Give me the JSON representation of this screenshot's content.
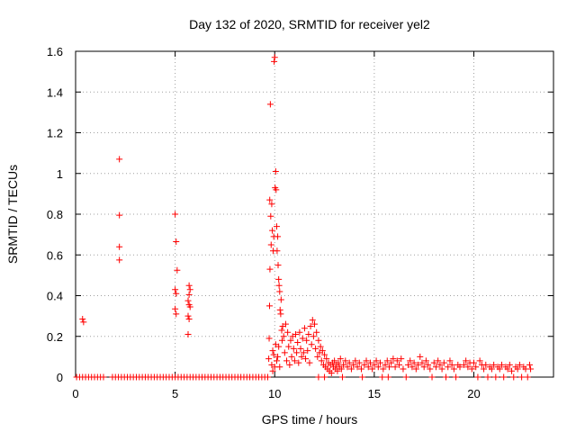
{
  "chart_data": {
    "type": "scatter",
    "title": "Day 132 of 2020, SRMTID for receiver yel2",
    "xlabel": "GPS time / hours",
    "ylabel": "SRMTID / TECUs",
    "xlim": [
      0,
      24
    ],
    "ylim": [
      0,
      1.6
    ],
    "x_ticks": [
      0,
      5,
      10,
      15,
      20
    ],
    "x_tick_labels": [
      "0",
      "5",
      "10",
      "15",
      "20"
    ],
    "y_ticks": [
      0,
      0.2,
      0.4,
      0.6,
      0.8,
      1.0,
      1.2,
      1.4,
      1.6
    ],
    "y_tick_labels": [
      "0",
      "0.2",
      "0.4",
      "0.6",
      "0.8",
      "1",
      "1.2",
      "1.4",
      "1.6"
    ],
    "grid": true,
    "marker": "+",
    "color": "#ff0000",
    "series": [
      {
        "name": "SRMTID",
        "points": [
          [
            0.05,
            0
          ],
          [
            0.2,
            0
          ],
          [
            0.35,
            0
          ],
          [
            0.5,
            0
          ],
          [
            0.65,
            0
          ],
          [
            0.8,
            0
          ],
          [
            0.95,
            0
          ],
          [
            1.1,
            0
          ],
          [
            1.25,
            0
          ],
          [
            1.4,
            0
          ],
          [
            1.85,
            0
          ],
          [
            2.0,
            0
          ],
          [
            2.15,
            0
          ],
          [
            2.3,
            0
          ],
          [
            2.45,
            0
          ],
          [
            2.6,
            0
          ],
          [
            2.75,
            0
          ],
          [
            2.9,
            0
          ],
          [
            3.05,
            0
          ],
          [
            3.2,
            0
          ],
          [
            3.35,
            0
          ],
          [
            3.5,
            0
          ],
          [
            3.65,
            0
          ],
          [
            3.8,
            0
          ],
          [
            3.95,
            0
          ],
          [
            4.1,
            0
          ],
          [
            4.25,
            0
          ],
          [
            4.4,
            0
          ],
          [
            4.55,
            0
          ],
          [
            4.7,
            0
          ],
          [
            4.85,
            0
          ],
          [
            5.0,
            0
          ],
          [
            5.15,
            0
          ],
          [
            5.3,
            0
          ],
          [
            5.45,
            0
          ],
          [
            5.6,
            0
          ],
          [
            5.75,
            0
          ],
          [
            5.9,
            0
          ],
          [
            6.05,
            0
          ],
          [
            6.2,
            0
          ],
          [
            6.35,
            0
          ],
          [
            6.5,
            0
          ],
          [
            6.65,
            0
          ],
          [
            6.8,
            0
          ],
          [
            6.95,
            0
          ],
          [
            7.1,
            0
          ],
          [
            7.25,
            0
          ],
          [
            7.4,
            0
          ],
          [
            7.55,
            0
          ],
          [
            7.7,
            0
          ],
          [
            7.85,
            0
          ],
          [
            8.0,
            0
          ],
          [
            8.15,
            0
          ],
          [
            8.3,
            0
          ],
          [
            8.45,
            0
          ],
          [
            8.6,
            0
          ],
          [
            8.75,
            0
          ],
          [
            8.9,
            0
          ],
          [
            9.05,
            0
          ],
          [
            9.2,
            0
          ],
          [
            9.35,
            0
          ],
          [
            9.5,
            0
          ],
          [
            9.65,
            0
          ],
          [
            12.2,
            0
          ],
          [
            12.5,
            0
          ],
          [
            13.4,
            0
          ],
          [
            14.4,
            0
          ],
          [
            15.4,
            0
          ],
          [
            15.7,
            0
          ],
          [
            16.6,
            0
          ],
          [
            17.9,
            0
          ],
          [
            18.6,
            0
          ],
          [
            19.1,
            0
          ],
          [
            20.2,
            0
          ],
          [
            20.7,
            0
          ],
          [
            21.1,
            0
          ],
          [
            21.5,
            0
          ],
          [
            22.0,
            0
          ],
          [
            22.4,
            0
          ],
          [
            22.7,
            0
          ],
          [
            0.35,
            0.285
          ],
          [
            0.4,
            0.27
          ],
          [
            2.2,
            1.07
          ],
          [
            2.2,
            0.795
          ],
          [
            2.2,
            0.64
          ],
          [
            2.2,
            0.575
          ],
          [
            5.0,
            0.8
          ],
          [
            5.05,
            0.665
          ],
          [
            5.1,
            0.525
          ],
          [
            5.0,
            0.43
          ],
          [
            5.05,
            0.41
          ],
          [
            5.0,
            0.335
          ],
          [
            5.05,
            0.31
          ],
          [
            5.7,
            0.45
          ],
          [
            5.75,
            0.43
          ],
          [
            5.7,
            0.405
          ],
          [
            5.65,
            0.375
          ],
          [
            5.7,
            0.355
          ],
          [
            5.75,
            0.345
          ],
          [
            5.65,
            0.3
          ],
          [
            5.7,
            0.285
          ],
          [
            5.65,
            0.21
          ],
          [
            9.7,
            0.09
          ],
          [
            9.72,
            0.19
          ],
          [
            9.74,
            0.35
          ],
          [
            9.75,
            0.87
          ],
          [
            9.76,
            0.53
          ],
          [
            9.78,
            1.34
          ],
          [
            9.8,
            0.79
          ],
          [
            9.82,
            0.65
          ],
          [
            9.85,
            0.85
          ],
          [
            9.88,
            0.72
          ],
          [
            9.9,
            0.13
          ],
          [
            9.92,
            0.62
          ],
          [
            9.95,
            0.69
          ],
          [
            9.97,
            1.55
          ],
          [
            10.0,
            1.57
          ],
          [
            10.02,
            0.93
          ],
          [
            10.05,
            1.01
          ],
          [
            10.07,
            0.92
          ],
          [
            10.1,
            0.74
          ],
          [
            10.12,
            0.62
          ],
          [
            10.15,
            0.69
          ],
          [
            10.17,
            0.55
          ],
          [
            10.2,
            0.48
          ],
          [
            10.22,
            0.45
          ],
          [
            10.25,
            0.42
          ],
          [
            10.27,
            0.33
          ],
          [
            10.3,
            0.31
          ],
          [
            10.32,
            0.38
          ],
          [
            10.35,
            0.23
          ],
          [
            10.37,
            0.18
          ],
          [
            9.85,
            0.06
          ],
          [
            9.9,
            0.03
          ],
          [
            9.95,
            0.11
          ],
          [
            10.0,
            0.05
          ],
          [
            10.05,
            0.16
          ],
          [
            10.1,
            0.08
          ],
          [
            10.15,
            0.1
          ],
          [
            10.2,
            0.15
          ],
          [
            10.25,
            0.05
          ],
          [
            10.4,
            0.25
          ],
          [
            10.45,
            0.2
          ],
          [
            10.5,
            0.12
          ],
          [
            10.55,
            0.26
          ],
          [
            10.6,
            0.08
          ],
          [
            10.65,
            0.22
          ],
          [
            10.7,
            0.15
          ],
          [
            10.75,
            0.06
          ],
          [
            10.8,
            0.18
          ],
          [
            10.85,
            0.1
          ],
          [
            10.9,
            0.2
          ],
          [
            10.95,
            0.14
          ],
          [
            11.0,
            0.08
          ],
          [
            11.05,
            0.21
          ],
          [
            11.1,
            0.12
          ],
          [
            11.15,
            0.17
          ],
          [
            11.2,
            0.07
          ],
          [
            11.25,
            0.22
          ],
          [
            11.3,
            0.14
          ],
          [
            11.35,
            0.1
          ],
          [
            11.4,
            0.19
          ],
          [
            11.45,
            0.12
          ],
          [
            11.5,
            0.24
          ],
          [
            11.55,
            0.09
          ],
          [
            11.6,
            0.18
          ],
          [
            11.65,
            0.13
          ],
          [
            11.7,
            0.21
          ],
          [
            11.75,
            0.07
          ],
          [
            11.8,
            0.25
          ],
          [
            11.85,
            0.16
          ],
          [
            11.9,
            0.28
          ],
          [
            11.95,
            0.2
          ],
          [
            12.0,
            0.26
          ],
          [
            12.05,
            0.14
          ],
          [
            12.1,
            0.22
          ],
          [
            12.15,
            0.1
          ],
          [
            12.2,
            0.18
          ],
          [
            12.25,
            0.12
          ],
          [
            12.3,
            0.15
          ],
          [
            12.35,
            0.08
          ],
          [
            12.4,
            0.13
          ],
          [
            12.45,
            0.06
          ],
          [
            12.5,
            0.11
          ],
          [
            12.55,
            0.05
          ],
          [
            12.6,
            0.09
          ],
          [
            12.65,
            0.04
          ],
          [
            12.7,
            0.07
          ],
          [
            12.75,
            0.03
          ],
          [
            12.8,
            0.06
          ],
          [
            12.85,
            0.02
          ],
          [
            12.9,
            0.07
          ],
          [
            12.95,
            0.05
          ],
          [
            13.0,
            0.08
          ],
          [
            13.05,
            0.04
          ],
          [
            13.1,
            0.06
          ],
          [
            13.15,
            0.03
          ],
          [
            13.2,
            0.07
          ],
          [
            13.25,
            0.05
          ],
          [
            13.3,
            0.09
          ],
          [
            13.35,
            0.04
          ],
          [
            13.45,
            0.06
          ],
          [
            13.55,
            0.08
          ],
          [
            13.65,
            0.05
          ],
          [
            13.75,
            0.07
          ],
          [
            13.85,
            0.04
          ],
          [
            13.95,
            0.06
          ],
          [
            14.05,
            0.08
          ],
          [
            14.15,
            0.05
          ],
          [
            14.25,
            0.07
          ],
          [
            14.35,
            0.04
          ],
          [
            14.5,
            0.06
          ],
          [
            14.6,
            0.08
          ],
          [
            14.7,
            0.05
          ],
          [
            14.8,
            0.07
          ],
          [
            14.9,
            0.04
          ],
          [
            15.0,
            0.06
          ],
          [
            15.1,
            0.08
          ],
          [
            15.2,
            0.05
          ],
          [
            15.3,
            0.07
          ],
          [
            15.45,
            0.04
          ],
          [
            15.55,
            0.06
          ],
          [
            15.65,
            0.08
          ],
          [
            15.75,
            0.05
          ],
          [
            15.85,
            0.07
          ],
          [
            15.95,
            0.09
          ],
          [
            16.05,
            0.05
          ],
          [
            16.15,
            0.08
          ],
          [
            16.25,
            0.06
          ],
          [
            16.35,
            0.09
          ],
          [
            16.45,
            0.04
          ],
          [
            16.7,
            0.06
          ],
          [
            16.8,
            0.08
          ],
          [
            16.9,
            0.05
          ],
          [
            17.0,
            0.07
          ],
          [
            17.1,
            0.04
          ],
          [
            17.2,
            0.06
          ],
          [
            17.3,
            0.1
          ],
          [
            17.4,
            0.07
          ],
          [
            17.5,
            0.05
          ],
          [
            17.6,
            0.08
          ],
          [
            17.7,
            0.06
          ],
          [
            17.8,
            0.04
          ],
          [
            18.0,
            0.07
          ],
          [
            18.1,
            0.05
          ],
          [
            18.2,
            0.08
          ],
          [
            18.3,
            0.06
          ],
          [
            18.4,
            0.04
          ],
          [
            18.5,
            0.07
          ],
          [
            18.7,
            0.05
          ],
          [
            18.8,
            0.08
          ],
          [
            18.9,
            0.06
          ],
          [
            19.0,
            0.04
          ],
          [
            19.2,
            0.06
          ],
          [
            19.3,
            0.05
          ],
          [
            19.5,
            0.06
          ],
          [
            19.6,
            0.08
          ],
          [
            19.7,
            0.05
          ],
          [
            19.8,
            0.07
          ],
          [
            19.9,
            0.04
          ],
          [
            20.0,
            0.07
          ],
          [
            20.1,
            0.05
          ],
          [
            20.3,
            0.08
          ],
          [
            20.4,
            0.06
          ],
          [
            20.5,
            0.04
          ],
          [
            20.6,
            0.06
          ],
          [
            20.8,
            0.05
          ],
          [
            20.9,
            0.04
          ],
          [
            21.0,
            0.06
          ],
          [
            21.2,
            0.05
          ],
          [
            21.3,
            0.04
          ],
          [
            21.4,
            0.06
          ],
          [
            21.6,
            0.05
          ],
          [
            21.7,
            0.04
          ],
          [
            21.8,
            0.06
          ],
          [
            21.9,
            0.03
          ],
          [
            22.1,
            0.05
          ],
          [
            22.2,
            0.04
          ],
          [
            22.3,
            0.06
          ],
          [
            22.5,
            0.05
          ],
          [
            22.6,
            0.04
          ],
          [
            22.8,
            0.06
          ],
          [
            22.85,
            0.04
          ]
        ]
      }
    ]
  }
}
